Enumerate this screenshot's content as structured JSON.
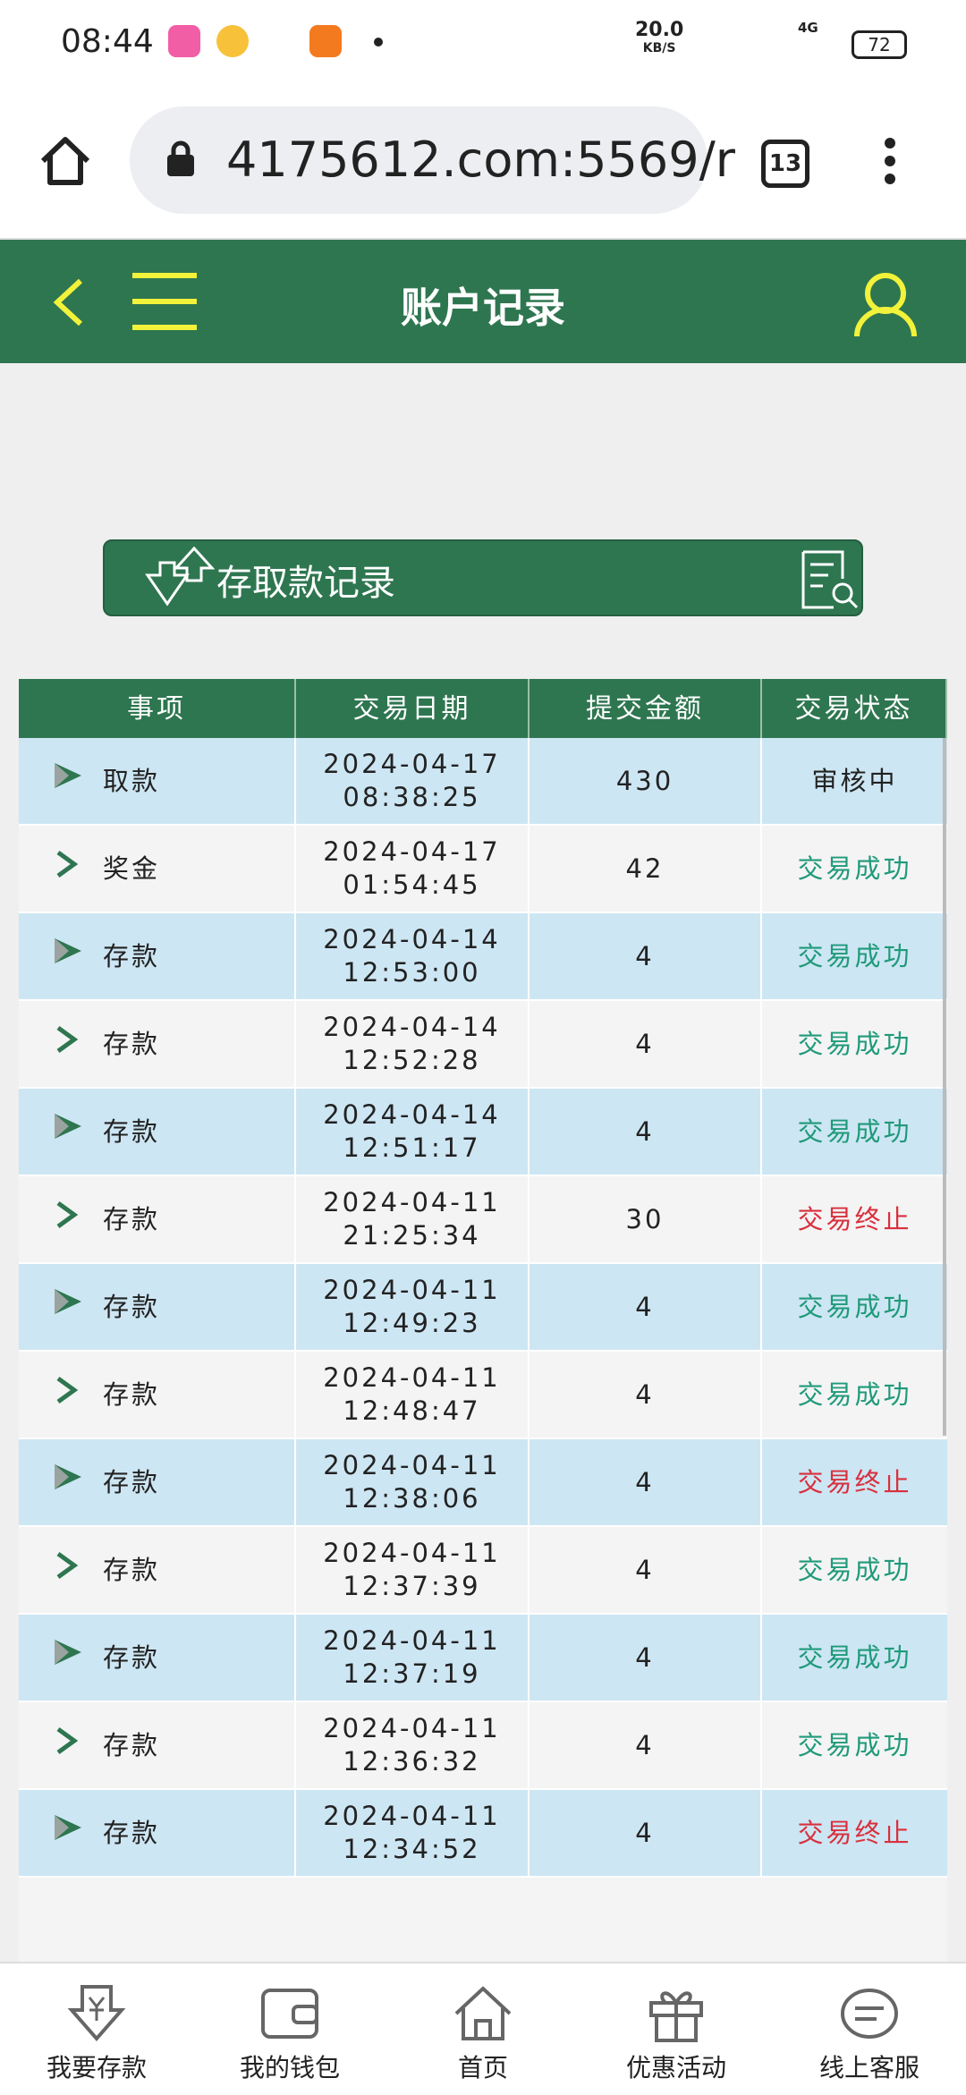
{
  "status_bar": {
    "time": "08:44",
    "speed": "20.0",
    "speed_unit": "KB/S",
    "network": "4G",
    "battery": "72"
  },
  "browser": {
    "url": "4175612.com:5569/r",
    "tab_count": "13"
  },
  "header": {
    "title": "账户记录"
  },
  "section": {
    "label": "存取款记录"
  },
  "table": {
    "headers": [
      "事项",
      "交易日期",
      "提交金额",
      "交易状态"
    ],
    "rows": [
      {
        "item": "取款",
        "date": "2024-04-17",
        "time": "08:38:25",
        "amount": "430",
        "status": "审核中",
        "status_color": "#222222"
      },
      {
        "item": "奖金",
        "date": "2024-04-17",
        "time": "01:54:45",
        "amount": "42",
        "status": "交易成功",
        "status_color": "#1f9a7a"
      },
      {
        "item": "存款",
        "date": "2024-04-14",
        "time": "12:53:00",
        "amount": "4",
        "status": "交易成功",
        "status_color": "#1f9a7a"
      },
      {
        "item": "存款",
        "date": "2024-04-14",
        "time": "12:52:28",
        "amount": "4",
        "status": "交易成功",
        "status_color": "#1f9a7a"
      },
      {
        "item": "存款",
        "date": "2024-04-14",
        "time": "12:51:17",
        "amount": "4",
        "status": "交易成功",
        "status_color": "#1f9a7a"
      },
      {
        "item": "存款",
        "date": "2024-04-11",
        "time": "21:25:34",
        "amount": "30",
        "status": "交易终止",
        "status_color": "#d9303e"
      },
      {
        "item": "存款",
        "date": "2024-04-11",
        "time": "12:49:23",
        "amount": "4",
        "status": "交易成功",
        "status_color": "#1f9a7a"
      },
      {
        "item": "存款",
        "date": "2024-04-11",
        "time": "12:48:47",
        "amount": "4",
        "status": "交易成功",
        "status_color": "#1f9a7a"
      },
      {
        "item": "存款",
        "date": "2024-04-11",
        "time": "12:38:06",
        "amount": "4",
        "status": "交易终止",
        "status_color": "#d9303e"
      },
      {
        "item": "存款",
        "date": "2024-04-11",
        "time": "12:37:39",
        "amount": "4",
        "status": "交易成功",
        "status_color": "#1f9a7a"
      },
      {
        "item": "存款",
        "date": "2024-04-11",
        "time": "12:37:19",
        "amount": "4",
        "status": "交易成功",
        "status_color": "#1f9a7a"
      },
      {
        "item": "存款",
        "date": "2024-04-11",
        "time": "12:36:32",
        "amount": "4",
        "status": "交易成功",
        "status_color": "#1f9a7a"
      },
      {
        "item": "存款",
        "date": "2024-04-11",
        "time": "12:34:52",
        "amount": "4",
        "status": "交易终止",
        "status_color": "#d9303e"
      }
    ]
  },
  "nav": {
    "items": [
      "我要存款",
      "我的钱包",
      "首页",
      "优惠活动",
      "线上客服"
    ]
  }
}
